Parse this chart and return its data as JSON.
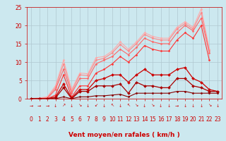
{
  "background_color": "#cce8ef",
  "grid_color": "#b0c8d0",
  "xlabel": "Vent moyen/en rafales ( km/h )",
  "xlabel_color": "#cc0000",
  "xlabel_fontsize": 6.5,
  "tick_color": "#cc0000",
  "tick_fontsize": 5.5,
  "xlim": [
    -0.5,
    23.5
  ],
  "ylim": [
    0,
    25
  ],
  "yticks": [
    0,
    5,
    10,
    15,
    20,
    25
  ],
  "xticks": [
    0,
    1,
    2,
    3,
    4,
    5,
    6,
    7,
    8,
    9,
    10,
    11,
    12,
    13,
    14,
    15,
    16,
    17,
    18,
    19,
    20,
    21,
    22,
    23
  ],
  "series": [
    {
      "x": [
        0,
        1,
        2,
        3,
        4,
        5,
        6,
        7,
        8,
        9,
        10,
        11,
        12,
        13,
        14,
        15,
        16,
        17,
        18,
        19,
        20,
        21,
        22
      ],
      "y": [
        0,
        0.2,
        0.5,
        3.5,
        10.5,
        2.5,
        7.0,
        6.8,
        11.2,
        11.5,
        13.0,
        15.5,
        13.5,
        15.5,
        18.0,
        17.0,
        16.5,
        16.5,
        19.5,
        21.0,
        19.5,
        24.5,
        13.5
      ],
      "color": "#ffaaaa",
      "lw": 0.8,
      "marker": "D",
      "ms": 1.5
    },
    {
      "x": [
        0,
        1,
        2,
        3,
        4,
        5,
        6,
        7,
        8,
        9,
        10,
        11,
        12,
        13,
        14,
        15,
        16,
        17,
        18,
        19,
        20,
        21,
        22
      ],
      "y": [
        0,
        0.1,
        0.3,
        3.0,
        9.5,
        2.0,
        6.5,
        6.3,
        10.5,
        11.0,
        12.5,
        14.8,
        13.0,
        15.0,
        17.5,
        16.5,
        16.0,
        16.0,
        19.0,
        20.5,
        19.0,
        23.5,
        13.0
      ],
      "color": "#ff8888",
      "lw": 0.8,
      "marker": "D",
      "ms": 1.5
    },
    {
      "x": [
        0,
        1,
        2,
        3,
        4,
        5,
        6,
        7,
        8,
        9,
        10,
        11,
        12,
        13,
        14,
        15,
        16,
        17,
        18,
        19,
        20,
        21,
        22
      ],
      "y": [
        0,
        0.0,
        0.1,
        2.5,
        8.0,
        1.5,
        5.5,
        5.5,
        9.5,
        10.5,
        11.5,
        13.5,
        12.0,
        14.0,
        16.5,
        15.5,
        15.0,
        15.0,
        18.0,
        20.0,
        18.5,
        22.0,
        12.5
      ],
      "color": "#ff6666",
      "lw": 0.8,
      "marker": "D",
      "ms": 1.5
    },
    {
      "x": [
        0,
        1,
        2,
        3,
        4,
        5,
        6,
        7,
        8,
        9,
        10,
        11,
        12,
        13,
        14,
        15,
        16,
        17,
        18,
        19,
        20,
        21,
        22
      ],
      "y": [
        0,
        0.0,
        0.0,
        1.0,
        6.5,
        0.5,
        3.5,
        3.5,
        7.0,
        8.0,
        9.5,
        11.5,
        10.0,
        12.0,
        14.5,
        13.5,
        13.0,
        13.0,
        16.0,
        18.0,
        16.5,
        20.0,
        10.5
      ],
      "color": "#ff3333",
      "lw": 0.8,
      "marker": "D",
      "ms": 1.5
    },
    {
      "x": [
        0,
        1,
        2,
        3,
        4,
        5,
        6,
        7,
        8,
        9,
        10,
        11,
        12,
        13,
        14,
        15,
        16,
        17,
        18,
        19,
        20,
        21,
        22,
        23
      ],
      "y": [
        0,
        0.0,
        0.0,
        0.5,
        4.0,
        0.2,
        2.5,
        2.5,
        5.0,
        5.5,
        6.5,
        6.5,
        4.5,
        6.5,
        8.0,
        6.5,
        6.5,
        6.5,
        8.0,
        8.5,
        5.5,
        4.5,
        2.5,
        2.0
      ],
      "color": "#cc0000",
      "lw": 0.9,
      "marker": "D",
      "ms": 2.0
    },
    {
      "x": [
        0,
        1,
        2,
        3,
        4,
        5,
        6,
        7,
        8,
        9,
        10,
        11,
        12,
        13,
        14,
        15,
        16,
        17,
        18,
        19,
        20,
        21,
        22,
        23
      ],
      "y": [
        0,
        0.0,
        0.0,
        0.2,
        3.0,
        0.0,
        2.0,
        2.0,
        3.5,
        3.5,
        3.5,
        4.0,
        1.5,
        4.5,
        3.5,
        3.5,
        3.0,
        3.0,
        5.5,
        5.5,
        3.5,
        3.0,
        2.0,
        2.0
      ],
      "color": "#aa0000",
      "lw": 0.9,
      "marker": "D",
      "ms": 2.0
    },
    {
      "x": [
        0,
        1,
        2,
        3,
        4,
        5,
        6,
        7,
        8,
        9,
        10,
        11,
        12,
        13,
        14,
        15,
        16,
        17,
        18,
        19,
        20,
        21,
        22,
        23
      ],
      "y": [
        0,
        0.0,
        0.0,
        0.0,
        0.5,
        0.0,
        0.5,
        0.5,
        0.8,
        0.8,
        1.0,
        1.2,
        0.5,
        1.5,
        1.5,
        1.5,
        1.5,
        1.5,
        2.0,
        2.0,
        1.5,
        1.5,
        1.5,
        1.5
      ],
      "color": "#880000",
      "lw": 0.8,
      "marker": "D",
      "ms": 1.5
    }
  ],
  "arrow_row": [
    "→",
    "→",
    "→",
    "↓",
    "↗",
    "↓",
    "↘",
    "↓",
    "↙",
    "↓",
    "↖",
    "↓",
    "↖",
    "↘",
    "↓",
    "↘",
    "↓",
    "↓",
    "→",
    "↓",
    "↓",
    "↓",
    "↘",
    "↓"
  ]
}
